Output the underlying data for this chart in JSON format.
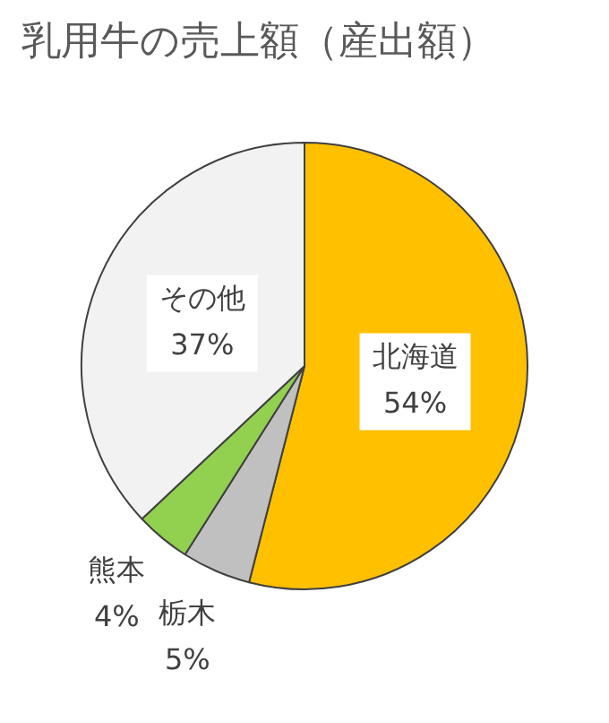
{
  "chart_data": {
    "type": "pie",
    "title": "乳用牛の売上額（産出額）",
    "categories": [
      "北海道",
      "栃木",
      "熊本",
      "その他"
    ],
    "values": [
      54,
      5,
      4,
      37
    ],
    "colors": [
      "#ffc000",
      "#c0c0c0",
      "#92d050",
      "#f2f2f2"
    ],
    "value_labels": [
      "54%",
      "5%",
      "4%",
      "37%"
    ],
    "legend": false
  }
}
